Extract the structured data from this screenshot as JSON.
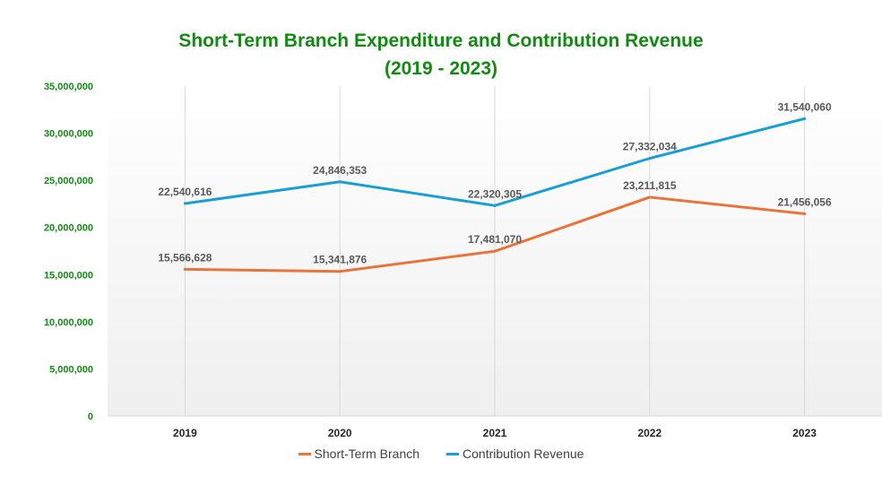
{
  "chart_data": {
    "type": "line",
    "title": "Short-Term Branch Expenditure and Contribution Revenue",
    "subtitle": "(2019 - 2023)",
    "categories": [
      "2019",
      "2020",
      "2021",
      "2022",
      "2023"
    ],
    "ylim": [
      0,
      35000000
    ],
    "yticks": [
      0,
      5000000,
      10000000,
      15000000,
      20000000,
      25000000,
      30000000,
      35000000
    ],
    "ytick_labels": [
      "0",
      "5,000,000",
      "10,000,000",
      "15,000,000",
      "20,000,000",
      "25,000,000",
      "30,000,000",
      "35,000,000"
    ],
    "grid": "vertical",
    "legend_position": "bottom",
    "series": [
      {
        "name": "Short-Term Branch",
        "color": "#e8743b",
        "values": [
          15566628,
          15341876,
          17481070,
          23211815,
          21456056
        ],
        "labels": [
          "15,566,628",
          "15,341,876",
          "17,481,070",
          "23,211,815",
          "21,456,056"
        ]
      },
      {
        "name": "Contribution Revenue",
        "color": "#1a9fd4",
        "values": [
          22540616,
          24846353,
          22320305,
          27332034,
          31540060
        ],
        "labels": [
          "22,540,616",
          "24,846,353",
          "22,320,305",
          "27,332,034",
          "31,540,060"
        ]
      }
    ]
  }
}
